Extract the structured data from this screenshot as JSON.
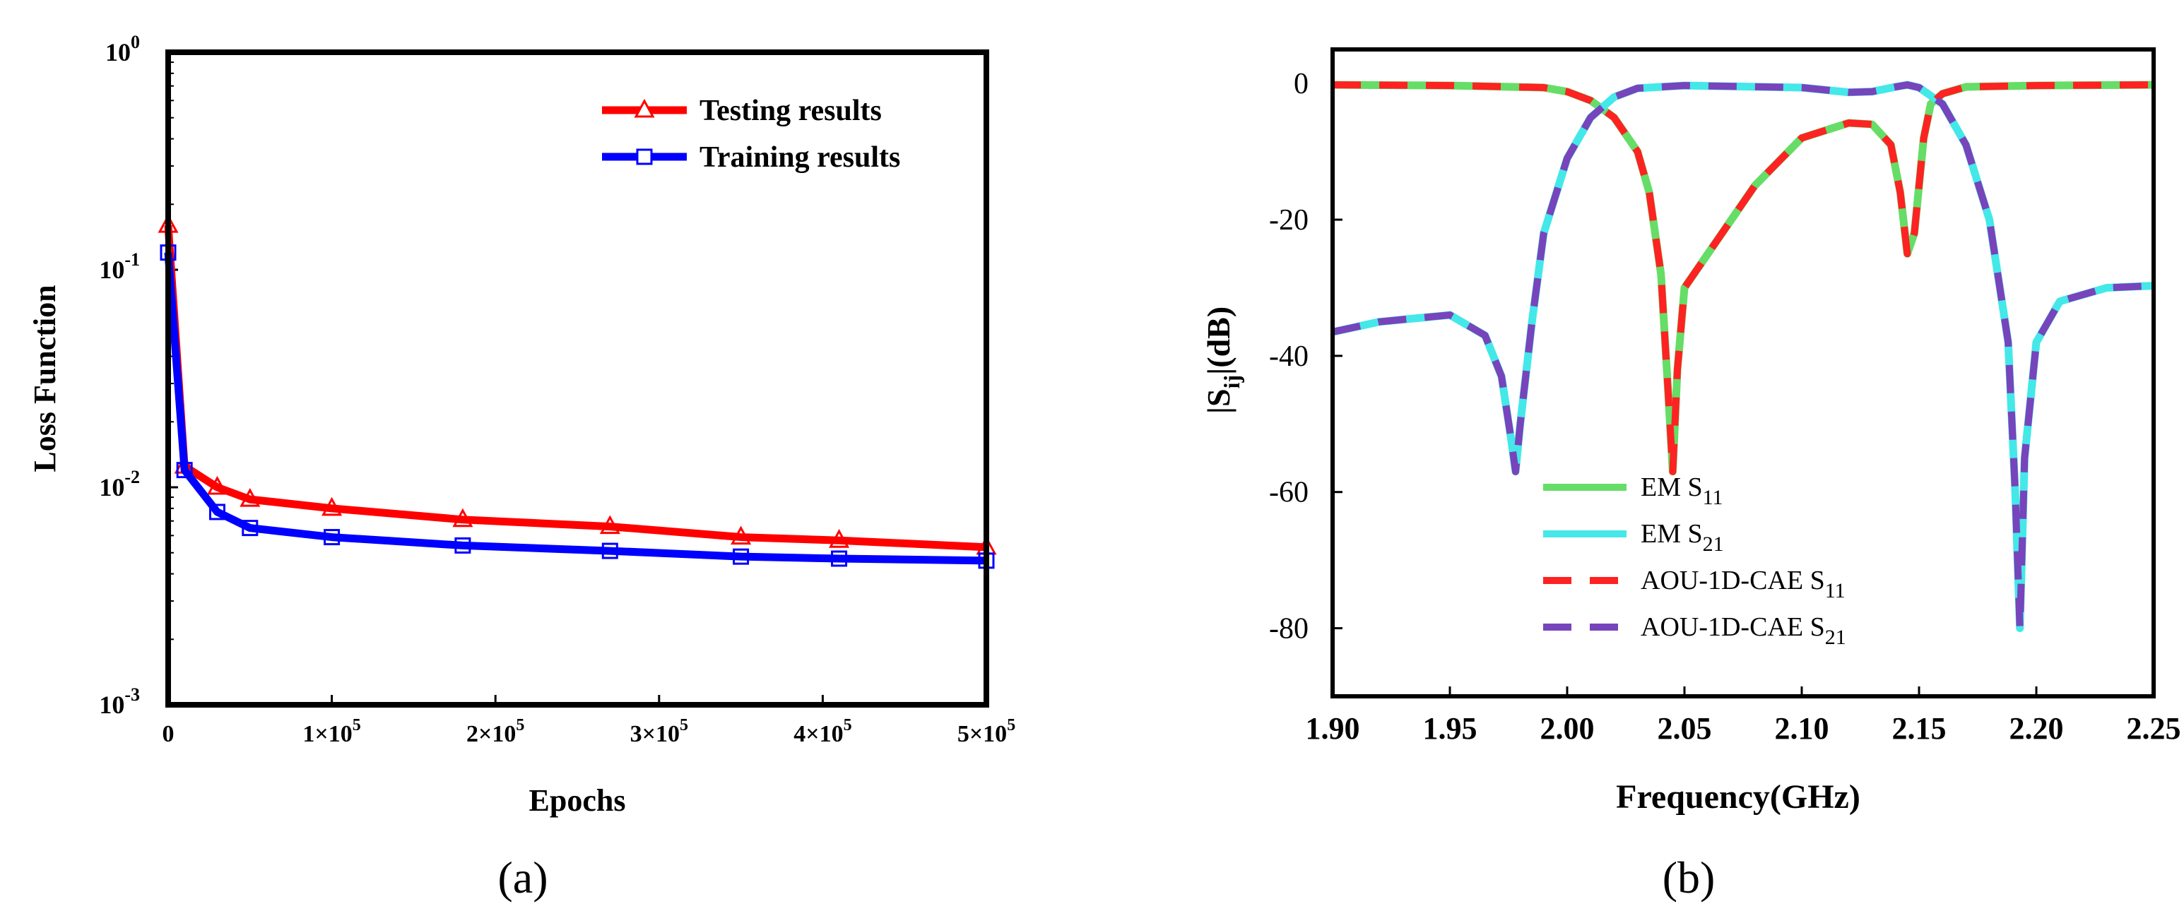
{
  "chart_data": [
    {
      "panel_label": "(a)",
      "type": "line",
      "xlabel": "Epochs",
      "ylabel": "Loss Function",
      "xscale": "linear",
      "yscale": "log",
      "xlim": [
        0,
        500000
      ],
      "ylim": [
        0.001,
        1
      ],
      "xticks": [
        {
          "value": 0,
          "mant": "0",
          "sup": ""
        },
        {
          "value": 100000,
          "mant": "1×10",
          "sup": "5"
        },
        {
          "value": 200000,
          "mant": "2×10",
          "sup": "5"
        },
        {
          "value": 300000,
          "mant": "3×10",
          "sup": "5"
        },
        {
          "value": 400000,
          "mant": "4×10",
          "sup": "5"
        },
        {
          "value": 500000,
          "mant": "5×10",
          "sup": "5"
        }
      ],
      "yticks": [
        {
          "value": 1,
          "base": "10",
          "sup": "0"
        },
        {
          "value": 0.1,
          "base": "10",
          "sup": "-1"
        },
        {
          "value": 0.01,
          "base": "10",
          "sup": "-2"
        },
        {
          "value": 0.001,
          "base": "10",
          "sup": "-3"
        }
      ],
      "legend_position": "top-right",
      "series": [
        {
          "name": "Testing results",
          "color": "#ff0000",
          "marker": "triangle",
          "x": [
            0,
            10000,
            30000,
            50000,
            100000,
            180000,
            270000,
            350000,
            410000,
            500000
          ],
          "y": [
            0.16,
            0.0125,
            0.01,
            0.0088,
            0.008,
            0.0071,
            0.0066,
            0.0059,
            0.0057,
            0.0053
          ]
        },
        {
          "name": "Training results",
          "color": "#0000ff",
          "marker": "square",
          "x": [
            0,
            10000,
            30000,
            50000,
            100000,
            180000,
            270000,
            350000,
            410000,
            500000
          ],
          "y": [
            0.12,
            0.012,
            0.0077,
            0.0065,
            0.0059,
            0.0054,
            0.0051,
            0.0048,
            0.0047,
            0.0046
          ]
        }
      ]
    },
    {
      "panel_label": "(b)",
      "type": "line",
      "xlabel": "Frequency(GHz)",
      "ylabel_main": "|S",
      "ylabel_sub": "ij",
      "ylabel_tail": "|(dB)",
      "xlim": [
        1.9,
        2.25
      ],
      "ylim": [
        -90,
        5
      ],
      "xticks": [
        {
          "value": 1.9,
          "label": "1.90"
        },
        {
          "value": 1.95,
          "label": "1.95"
        },
        {
          "value": 2.0,
          "label": "2.00"
        },
        {
          "value": 2.05,
          "label": "2.05"
        },
        {
          "value": 2.1,
          "label": "2.10"
        },
        {
          "value": 2.15,
          "label": "2.15"
        },
        {
          "value": 2.2,
          "label": "2.20"
        },
        {
          "value": 2.25,
          "label": "2.25"
        }
      ],
      "yticks": [
        {
          "value": 0,
          "label": "0"
        },
        {
          "value": -20,
          "label": "-20"
        },
        {
          "value": -40,
          "label": "-40"
        },
        {
          "value": -60,
          "label": "-60"
        },
        {
          "value": -80,
          "label": "-80"
        }
      ],
      "legend_position": "bottom-center",
      "series": [
        {
          "name": "EM S11",
          "legend_text": "EM S",
          "legend_sub": "11",
          "color": "#66dd66",
          "style": "solid",
          "x": [
            1.9,
            1.95,
            1.99,
            2.0,
            2.01,
            2.02,
            2.03,
            2.035,
            2.04,
            2.043,
            2.045,
            2.047,
            2.05,
            2.06,
            2.08,
            2.1,
            2.12,
            2.13,
            2.138,
            2.142,
            2.145,
            2.148,
            2.152,
            2.155,
            2.16,
            2.17,
            2.2,
            2.25
          ],
          "y": [
            -0.2,
            -0.3,
            -0.6,
            -1.2,
            -2.5,
            -5,
            -10,
            -16,
            -28,
            -45,
            -57,
            -42,
            -30,
            -25,
            -15,
            -8,
            -5.8,
            -6,
            -9,
            -16,
            -25,
            -22,
            -8,
            -3,
            -1.5,
            -0.5,
            -0.3,
            -0.2
          ]
        },
        {
          "name": "EM S21",
          "legend_text": "EM S",
          "legend_sub": "21",
          "color": "#44e8e8",
          "style": "solid",
          "x": [
            1.9,
            1.92,
            1.95,
            1.965,
            1.972,
            1.976,
            1.978,
            1.98,
            1.985,
            1.99,
            2.0,
            2.01,
            2.02,
            2.03,
            2.05,
            2.1,
            2.12,
            2.13,
            2.14,
            2.145,
            2.15,
            2.16,
            2.17,
            2.18,
            2.188,
            2.191,
            2.193,
            2.195,
            2.2,
            2.21,
            2.23,
            2.25
          ],
          "y": [
            -36.5,
            -35,
            -34,
            -37,
            -43,
            -52,
            -57,
            -50,
            -35,
            -22,
            -11,
            -5,
            -2,
            -0.7,
            -0.3,
            -0.6,
            -1.3,
            -1.2,
            -0.5,
            -0.2,
            -0.6,
            -3,
            -9,
            -20,
            -38,
            -60,
            -80,
            -55,
            -38,
            -32,
            -30,
            -29.7
          ]
        },
        {
          "name": "AOU-1D-CAE S11",
          "legend_text": "AOU-1D-CAE S",
          "legend_sub": "11",
          "color": "#ff2222",
          "style": "dashed",
          "x": [
            1.9,
            1.95,
            1.99,
            2.0,
            2.01,
            2.02,
            2.03,
            2.035,
            2.04,
            2.043,
            2.045,
            2.047,
            2.05,
            2.06,
            2.08,
            2.1,
            2.12,
            2.13,
            2.138,
            2.142,
            2.145,
            2.148,
            2.152,
            2.155,
            2.16,
            2.17,
            2.2,
            2.25
          ],
          "y": [
            -0.2,
            -0.3,
            -0.6,
            -1.2,
            -2.5,
            -5,
            -10,
            -16,
            -28,
            -45,
            -57,
            -42,
            -30,
            -25,
            -15,
            -8,
            -5.8,
            -6,
            -9,
            -16,
            -25,
            -22,
            -8,
            -3,
            -1.5,
            -0.5,
            -0.3,
            -0.2
          ]
        },
        {
          "name": "AOU-1D-CAE S21",
          "legend_text": "AOU-1D-CAE S",
          "legend_sub": "21",
          "color": "#7744bb",
          "style": "dashed",
          "x": [
            1.9,
            1.92,
            1.95,
            1.965,
            1.972,
            1.976,
            1.978,
            1.98,
            1.985,
            1.99,
            2.0,
            2.01,
            2.02,
            2.03,
            2.05,
            2.1,
            2.12,
            2.13,
            2.14,
            2.145,
            2.15,
            2.16,
            2.17,
            2.18,
            2.188,
            2.191,
            2.193,
            2.195,
            2.2,
            2.21,
            2.23,
            2.25
          ],
          "y": [
            -36.5,
            -35,
            -34,
            -37,
            -43,
            -52,
            -57,
            -50,
            -35,
            -22,
            -11,
            -5,
            -2,
            -0.7,
            -0.3,
            -0.6,
            -1.3,
            -1.2,
            -0.5,
            -0.2,
            -0.6,
            -3,
            -9,
            -20,
            -38,
            -60,
            -80,
            -55,
            -38,
            -32,
            -30,
            -29.7
          ]
        }
      ]
    }
  ]
}
